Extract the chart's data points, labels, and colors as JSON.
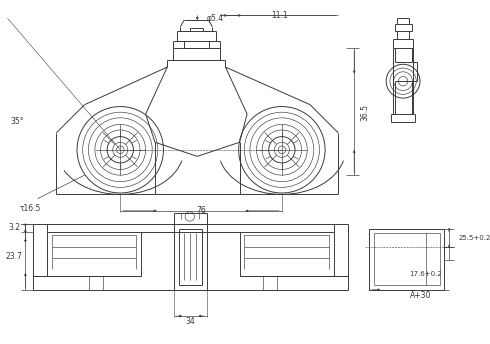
{
  "bg_color": "#ffffff",
  "lc": "#3a3a3a",
  "lw": 0.7,
  "tlw": 0.45,
  "fig_w": 4.9,
  "fig_h": 3.44,
  "dpi": 100,
  "ann": {
    "phi54": "φ5.4",
    "d111": "11.1",
    "d365": "36.5",
    "a35": "35°",
    "phi165": "τ16.5",
    "d76": "76",
    "d32": "3.2",
    "d237": "23.7",
    "d34": "34",
    "d255": "25.5+0.2",
    "d176": "17.6+0.2",
    "a30": "A+30"
  }
}
